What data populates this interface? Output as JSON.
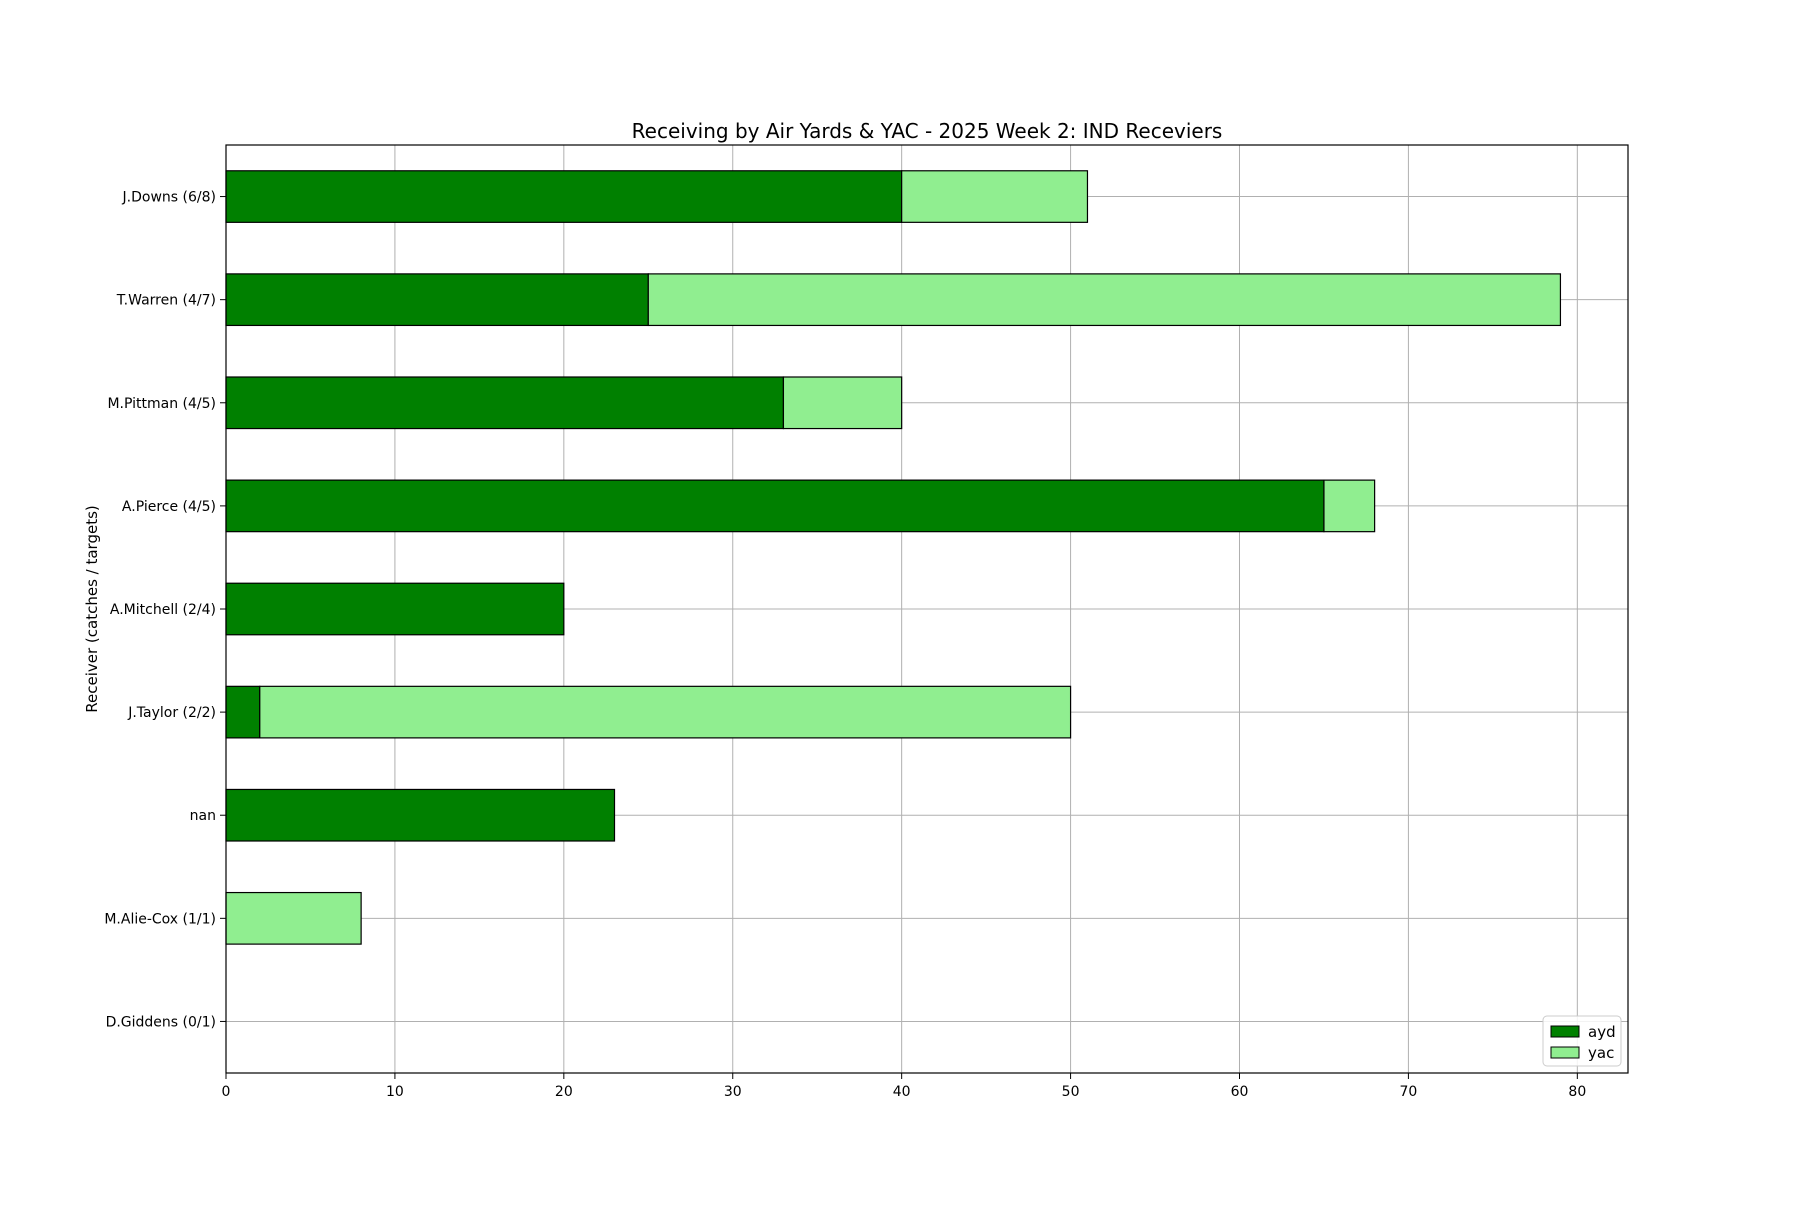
{
  "chart_data": {
    "type": "bar",
    "orientation": "horizontal",
    "stacked": true,
    "title": "Receiving by Air Yards & YAC - 2025 Week 2: IND Receviers",
    "xlabel": "",
    "ylabel": "Receiver (catches / targets)",
    "categories": [
      "J.Downs (6/8)",
      "T.Warren (4/7)",
      "M.Pittman (4/5)",
      "A.Pierce (4/5)",
      "A.Mitchell (2/4)",
      "J.Taylor (2/2)",
      "nan",
      "M.Alie-Cox (1/1)",
      "D.Giddens (0/1)"
    ],
    "series": [
      {
        "name": "ayd",
        "color": "#008000",
        "values": [
          40,
          25,
          33,
          65,
          20,
          2,
          23,
          0,
          0
        ]
      },
      {
        "name": "yac",
        "color": "#90ee90",
        "values": [
          11,
          54,
          7,
          3,
          0,
          48,
          0,
          8,
          0
        ]
      }
    ],
    "xlim": [
      0,
      83
    ],
    "xticks": [
      0,
      10,
      20,
      30,
      40,
      50,
      60,
      70,
      80
    ],
    "grid": true,
    "legend_position": "lower-right"
  }
}
